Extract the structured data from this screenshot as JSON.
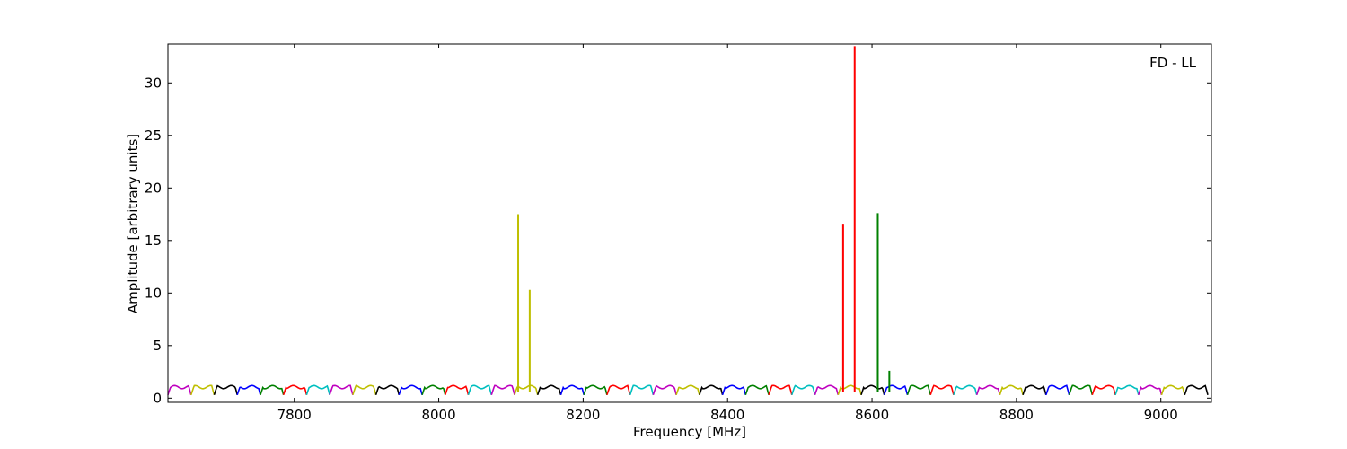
{
  "chart_data": {
    "type": "line",
    "title": "",
    "annotation": "FD - LL",
    "xlabel": "Frequency [MHz]",
    "ylabel": "Amplitude [arbitrary units]",
    "xlim": [
      7625,
      9070
    ],
    "ylim": [
      -0.4,
      33.7
    ],
    "xticks": [
      7800,
      8000,
      8200,
      8400,
      8600,
      8800,
      9000
    ],
    "yticks": [
      0,
      5,
      10,
      15,
      20,
      25,
      30
    ],
    "grid": false,
    "legend": "none",
    "channel": {
      "start": 7625,
      "width": 32,
      "count": 45,
      "baseline_min": 0.3,
      "baseline_max": 1.3
    },
    "color_cycle": [
      "#bf00bf",
      "#bfbf00",
      "#000000",
      "#0000ff",
      "#008000",
      "#ff0000",
      "#00bfbf"
    ],
    "spikes": [
      {
        "x": 8110,
        "value": 17.5,
        "color": "#bfbf00"
      },
      {
        "x": 8126,
        "value": 10.3,
        "color": "#bfbf00"
      },
      {
        "x": 8560,
        "value": 16.6,
        "color": "#ff0000"
      },
      {
        "x": 8576,
        "value": 33.5,
        "color": "#ff0000"
      },
      {
        "x": 8608,
        "value": 17.6,
        "color": "#008000"
      },
      {
        "x": 8624,
        "value": 2.6,
        "color": "#008000"
      }
    ]
  }
}
